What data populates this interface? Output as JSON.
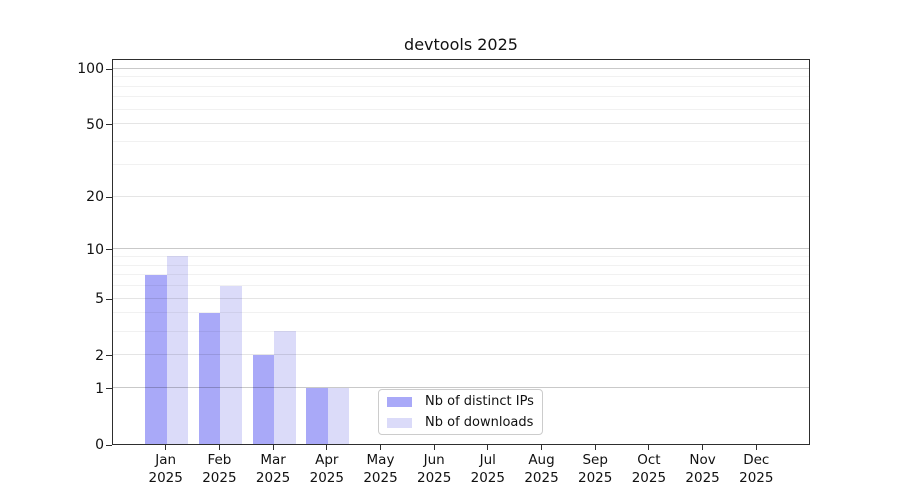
{
  "chart_data": {
    "type": "bar",
    "title": "devtools 2025",
    "xlabel": "",
    "ylabel": "",
    "yscale": "log1p",
    "ylim": [
      0,
      114
    ],
    "grid": true,
    "legend_position": "lower center inside plot",
    "categories": [
      "Jan",
      "Feb",
      "Mar",
      "Apr",
      "May",
      "Jun",
      "Jul",
      "Aug",
      "Sep",
      "Oct",
      "Nov",
      "Dec"
    ],
    "category_year": "2025",
    "series": [
      {
        "name": "Nb of distinct IPs",
        "color": "#a9a9f8",
        "values": [
          7,
          4,
          2,
          1,
          0,
          0,
          0,
          0,
          0,
          0,
          0,
          0
        ]
      },
      {
        "name": "Nb of downloads",
        "color": "#dbdbf9",
        "values": [
          9,
          6,
          3,
          1,
          0,
          0,
          0,
          0,
          0,
          0,
          0,
          0
        ]
      }
    ],
    "y_tick_values": [
      0,
      1,
      2,
      5,
      10,
      20,
      50,
      100
    ],
    "gridlines": {
      "major": [
        1,
        10,
        100
      ],
      "mid": [
        2,
        5,
        20,
        50
      ],
      "minor": [
        3,
        4,
        6,
        7,
        8,
        9,
        30,
        40,
        60,
        70,
        80,
        90
      ]
    },
    "colors": {
      "spine": "#2e2e2e",
      "grid_major": "rgba(0,0,0,0.21)",
      "grid_mid": "rgba(0,0,0,0.10)",
      "grid_minor": "rgba(0,0,0,0.055)",
      "text": "#111111",
      "background": "#ffffff"
    }
  }
}
